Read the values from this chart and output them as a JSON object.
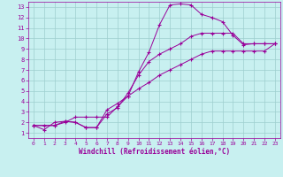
{
  "xlabel": "Windchill (Refroidissement éolien,°C)",
  "bg_color": "#c8f0f0",
  "line_color": "#990099",
  "grid_color": "#9ecece",
  "xlim": [
    -0.5,
    23.5
  ],
  "ylim": [
    0.5,
    13.5
  ],
  "xticks": [
    0,
    1,
    2,
    3,
    4,
    5,
    6,
    7,
    8,
    9,
    10,
    11,
    12,
    13,
    14,
    15,
    16,
    17,
    18,
    19,
    20,
    21,
    22,
    23
  ],
  "yticks": [
    1,
    2,
    3,
    4,
    5,
    6,
    7,
    8,
    9,
    10,
    11,
    12,
    13
  ],
  "line1_x": [
    0,
    1,
    2,
    3,
    4,
    5,
    6,
    7,
    8,
    9,
    10,
    11,
    12,
    13,
    14,
    15,
    16,
    17,
    18,
    19,
    20,
    21,
    22,
    23
  ],
  "line1_y": [
    1.7,
    1.3,
    2.0,
    2.1,
    2.0,
    1.5,
    1.5,
    3.2,
    3.8,
    4.5,
    6.8,
    8.7,
    11.3,
    13.2,
    13.3,
    13.2,
    12.3,
    12.0,
    11.6,
    10.3,
    9.4,
    9.5,
    9.5,
    9.5
  ],
  "line2_x": [
    0,
    2,
    3,
    4,
    5,
    6,
    7,
    8,
    9,
    10,
    11,
    12,
    13,
    14,
    15,
    16,
    17,
    18,
    19,
    20,
    21,
    22,
    23
  ],
  "line2_y": [
    1.7,
    1.7,
    2.1,
    2.0,
    1.5,
    1.5,
    2.8,
    3.4,
    4.8,
    6.5,
    7.8,
    8.5,
    9.0,
    9.5,
    10.2,
    10.5,
    10.5,
    10.5,
    10.5,
    9.5,
    9.5,
    9.5,
    9.5
  ],
  "line3_x": [
    0,
    1,
    2,
    3,
    4,
    5,
    6,
    7,
    8,
    9,
    10,
    11,
    12,
    13,
    14,
    15,
    16,
    17,
    18,
    19,
    20,
    21,
    22,
    23
  ],
  "line3_y": [
    1.7,
    1.7,
    1.7,
    2.0,
    2.5,
    2.5,
    2.5,
    2.5,
    3.5,
    4.5,
    5.2,
    5.8,
    6.5,
    7.0,
    7.5,
    8.0,
    8.5,
    8.8,
    8.8,
    8.8,
    8.8,
    8.8,
    8.8,
    9.5
  ]
}
